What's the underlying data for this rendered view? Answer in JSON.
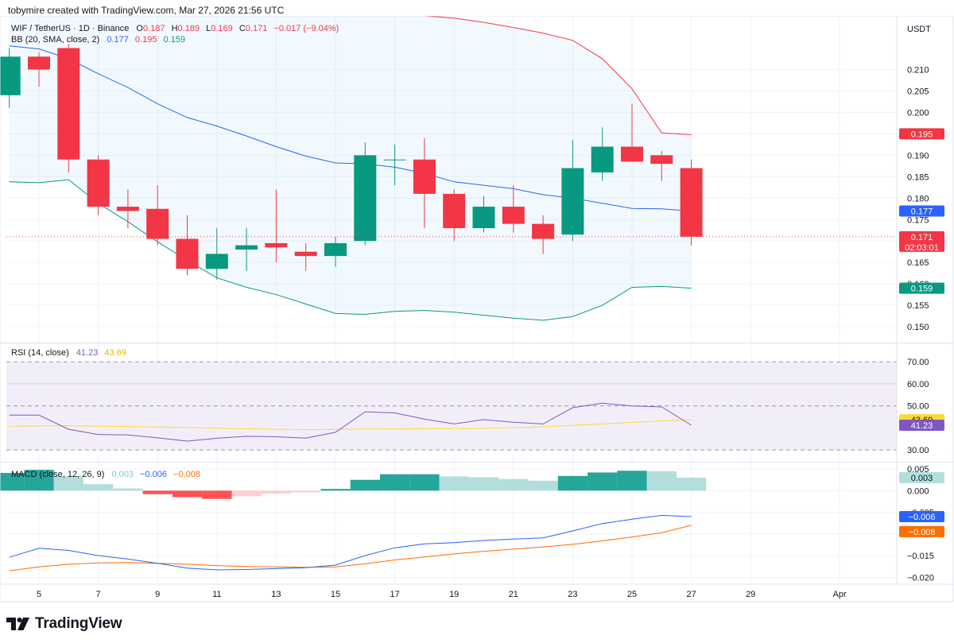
{
  "header": {
    "caption": "tobymire created with TradingView.com, Mar 27, 2026 21:56 UTC"
  },
  "footer": {
    "brand": "TradingView",
    "logo_icon": "tradingview-logo-icon"
  },
  "colors": {
    "up": "#089981",
    "down": "#f23645",
    "upper": "#f23645",
    "basis": "#2962ff",
    "lower": "#089981",
    "rsi": "#7e57c2",
    "rsi_ma": "#fdd835",
    "macd": "#2962ff",
    "signal": "#ff6d00",
    "hist_up_strong": "#26a69a",
    "hist_up_weak": "#b2dfdb",
    "hist_dn_strong": "#ff5252",
    "hist_dn_weak": "#ffcdd2"
  },
  "chart_data": {
    "type": "candlestick",
    "symbol": "WIF / TetherUS · 1D · Binance",
    "quote": {
      "O": "0.187",
      "H": "0.189",
      "L": "0.169",
      "C": "0.171",
      "change": "−0.017 (−9.04%)"
    },
    "currency": "USDT",
    "xaxis": {
      "ticks": [
        "5",
        "7",
        "9",
        "11",
        "13",
        "15",
        "17",
        "19",
        "21",
        "23",
        "25",
        "27",
        "29",
        "Apr"
      ],
      "domain_days": [
        4,
        27
      ]
    },
    "panes": {
      "price": {
        "ylim": [
          0.1465,
          0.2225
        ],
        "ticks": [
          "0.150",
          "0.155",
          "0.160",
          "0.165",
          "0.170",
          "0.175",
          "0.180",
          "0.185",
          "0.190",
          "0.195",
          "0.200",
          "0.205",
          "0.210"
        ],
        "last_price_marker": {
          "value": "0.171",
          "countdown": "02:03:01"
        },
        "candles": [
          {
            "d": 4,
            "o": 0.204,
            "h": 0.215,
            "l": 0.201,
            "c": 0.213
          },
          {
            "d": 5,
            "o": 0.213,
            "h": 0.214,
            "l": 0.206,
            "c": 0.21
          },
          {
            "d": 6,
            "o": 0.215,
            "h": 0.216,
            "l": 0.186,
            "c": 0.189
          },
          {
            "d": 7,
            "o": 0.189,
            "h": 0.19,
            "l": 0.176,
            "c": 0.178
          },
          {
            "d": 8,
            "o": 0.178,
            "h": 0.182,
            "l": 0.173,
            "c": 0.177
          },
          {
            "d": 9,
            "o": 0.1775,
            "h": 0.183,
            "l": 0.169,
            "c": 0.1705
          },
          {
            "d": 10,
            "o": 0.1705,
            "h": 0.176,
            "l": 0.162,
            "c": 0.1635
          },
          {
            "d": 11,
            "o": 0.1635,
            "h": 0.173,
            "l": 0.161,
            "c": 0.167
          },
          {
            "d": 12,
            "o": 0.168,
            "h": 0.173,
            "l": 0.163,
            "c": 0.169
          },
          {
            "d": 13,
            "o": 0.1695,
            "h": 0.182,
            "l": 0.165,
            "c": 0.1685
          },
          {
            "d": 14,
            "o": 0.1675,
            "h": 0.1695,
            "l": 0.163,
            "c": 0.1665
          },
          {
            "d": 15,
            "o": 0.1665,
            "h": 0.171,
            "l": 0.164,
            "c": 0.1695
          },
          {
            "d": 16,
            "o": 0.17,
            "h": 0.193,
            "l": 0.169,
            "c": 0.19
          },
          {
            "d": 17,
            "o": 0.189,
            "h": 0.1925,
            "l": 0.183,
            "c": 0.189
          },
          {
            "d": 18,
            "o": 0.189,
            "h": 0.194,
            "l": 0.173,
            "c": 0.181
          },
          {
            "d": 19,
            "o": 0.181,
            "h": 0.182,
            "l": 0.17,
            "c": 0.173
          },
          {
            "d": 20,
            "o": 0.173,
            "h": 0.1805,
            "l": 0.172,
            "c": 0.178
          },
          {
            "d": 21,
            "o": 0.178,
            "h": 0.183,
            "l": 0.172,
            "c": 0.174
          },
          {
            "d": 22,
            "o": 0.174,
            "h": 0.176,
            "l": 0.167,
            "c": 0.1705
          },
          {
            "d": 23,
            "o": 0.1715,
            "h": 0.1935,
            "l": 0.17,
            "c": 0.187
          },
          {
            "d": 24,
            "o": 0.186,
            "h": 0.1965,
            "l": 0.184,
            "c": 0.192
          },
          {
            "d": 25,
            "o": 0.192,
            "h": 0.202,
            "l": 0.1885,
            "c": 0.1885
          },
          {
            "d": 26,
            "o": 0.19,
            "h": 0.191,
            "l": 0.184,
            "c": 0.188
          },
          {
            "d": 27,
            "o": 0.187,
            "h": 0.189,
            "l": 0.169,
            "c": 0.171
          }
        ],
        "bollinger": {
          "label": "BB (20, SMA, close, 2)",
          "values": [
            "0.177",
            "0.195",
            "0.159"
          ],
          "upper": [
            [
              4,
              0.225
            ],
            [
              5,
              0.2245
            ],
            [
              6,
              0.224
            ],
            [
              7,
              0.2235
            ],
            [
              8,
              0.223
            ],
            [
              9,
              0.2227
            ],
            [
              10,
              0.2225
            ],
            [
              11,
              0.2225
            ],
            [
              12,
              0.2225
            ],
            [
              13,
              0.2225
            ],
            [
              14,
              0.2225
            ],
            [
              15,
              0.2225
            ],
            [
              16,
              0.2225
            ],
            [
              17,
              0.2225
            ],
            [
              18,
              0.2225
            ],
            [
              19,
              0.222
            ],
            [
              20,
              0.221
            ],
            [
              21,
              0.2198
            ],
            [
              22,
              0.2185
            ],
            [
              23,
              0.2168
            ],
            [
              24,
              0.2125
            ],
            [
              25,
              0.2055
            ],
            [
              26,
              0.1952
            ],
            [
              27,
              0.1948
            ]
          ],
          "basis": [
            [
              4,
              0.2155
            ],
            [
              5,
              0.2148
            ],
            [
              6,
              0.2125
            ],
            [
              7,
              0.209
            ],
            [
              8,
              0.2058
            ],
            [
              9,
              0.202
            ],
            [
              10,
              0.1988
            ],
            [
              11,
              0.1968
            ],
            [
              12,
              0.1945
            ],
            [
              13,
              0.192
            ],
            [
              14,
              0.1898
            ],
            [
              15,
              0.1882
            ],
            [
              16,
              0.188
            ],
            [
              17,
              0.1872
            ],
            [
              18,
              0.1858
            ],
            [
              19,
              0.1838
            ],
            [
              20,
              0.183
            ],
            [
              21,
              0.1822
            ],
            [
              22,
              0.1808
            ],
            [
              23,
              0.18
            ],
            [
              24,
              0.1788
            ],
            [
              25,
              0.1776
            ],
            [
              26,
              0.1775
            ],
            [
              27,
              0.177
            ]
          ],
          "lower": [
            [
              4,
              0.1838
            ],
            [
              5,
              0.1836
            ],
            [
              6,
              0.1843
            ],
            [
              7,
              0.1788
            ],
            [
              8,
              0.1745
            ],
            [
              9,
              0.1698
            ],
            [
              10,
              0.1655
            ],
            [
              11,
              0.1614
            ],
            [
              12,
              0.1592
            ],
            [
              13,
              0.1575
            ],
            [
              14,
              0.1553
            ],
            [
              15,
              0.1531
            ],
            [
              16,
              0.1529
            ],
            [
              17,
              0.1536
            ],
            [
              18,
              0.1538
            ],
            [
              19,
              0.1534
            ],
            [
              20,
              0.1527
            ],
            [
              21,
              0.152
            ],
            [
              22,
              0.1515
            ],
            [
              23,
              0.1524
            ],
            [
              24,
              0.155
            ],
            [
              25,
              0.1592
            ],
            [
              26,
              0.1594
            ],
            [
              27,
              0.159
            ]
          ]
        }
      },
      "rsi": {
        "label": "RSI (14, close)",
        "values": [
          "41.23",
          "43.69"
        ],
        "ylim": [
          25,
          78
        ],
        "levels": [
          "70.00",
          "50.00",
          "30.00"
        ],
        "midline": "60.00",
        "ticks": [
          "70.00",
          "60.00",
          "50.00",
          "30.00"
        ],
        "rsi": [
          [
            4,
            45.8
          ],
          [
            5,
            45.8
          ],
          [
            6,
            39.4
          ],
          [
            7,
            37.0
          ],
          [
            8,
            36.8
          ],
          [
            9,
            35.5
          ],
          [
            10,
            34.0
          ],
          [
            11,
            35.3
          ],
          [
            12,
            36.2
          ],
          [
            13,
            36.0
          ],
          [
            14,
            35.4
          ],
          [
            15,
            38.0
          ],
          [
            16,
            47.3
          ],
          [
            17,
            46.8
          ],
          [
            18,
            44.0
          ],
          [
            19,
            41.8
          ],
          [
            20,
            43.8
          ],
          [
            21,
            42.6
          ],
          [
            22,
            41.8
          ],
          [
            23,
            49.2
          ],
          [
            24,
            51.2
          ],
          [
            25,
            50.0
          ],
          [
            26,
            49.5
          ],
          [
            27,
            41.23
          ]
        ],
        "ma": [
          [
            4,
            40.8
          ],
          [
            6,
            41.0
          ],
          [
            8,
            40.6
          ],
          [
            10,
            40.2
          ],
          [
            12,
            39.6
          ],
          [
            14,
            39.2
          ],
          [
            16,
            39.5
          ],
          [
            18,
            39.6
          ],
          [
            20,
            39.8
          ],
          [
            22,
            40.5
          ],
          [
            24,
            41.8
          ],
          [
            26,
            43.2
          ],
          [
            27,
            43.69
          ]
        ]
      },
      "macd": {
        "label": "MACD (close, 12, 26, 9)",
        "values": [
          "0.003",
          "−0.006",
          "−0.008"
        ],
        "ylim": [
          -0.0216,
          0.0063
        ],
        "ticks": [
          "0.005",
          "0.000",
          "−0.005",
          "−0.010",
          "−0.015",
          "−0.020"
        ],
        "histogram": [
          [
            4,
            0.0041
          ],
          [
            5,
            0.0048
          ],
          [
            6,
            0.0034
          ],
          [
            7,
            0.0015
          ],
          [
            8,
            0.0005
          ],
          [
            9,
            -0.0008
          ],
          [
            10,
            -0.0015
          ],
          [
            11,
            -0.0019
          ],
          [
            12,
            -0.0013
          ],
          [
            13,
            -0.0007
          ],
          [
            14,
            -0.0004
          ],
          [
            15,
            0.0004
          ],
          [
            16,
            0.0025
          ],
          [
            17,
            0.0038
          ],
          [
            18,
            0.0038
          ],
          [
            19,
            0.0033
          ],
          [
            20,
            0.0031
          ],
          [
            21,
            0.0027
          ],
          [
            22,
            0.0023
          ],
          [
            23,
            0.0034
          ],
          [
            24,
            0.0042
          ],
          [
            25,
            0.0046
          ],
          [
            26,
            0.0045
          ],
          [
            27,
            0.003
          ]
        ],
        "macd": [
          [
            4,
            -0.0154
          ],
          [
            5,
            -0.0133
          ],
          [
            6,
            -0.0138
          ],
          [
            7,
            -0.015
          ],
          [
            8,
            -0.0158
          ],
          [
            9,
            -0.0168
          ],
          [
            10,
            -0.0179
          ],
          [
            11,
            -0.0183
          ],
          [
            12,
            -0.0182
          ],
          [
            13,
            -0.018
          ],
          [
            14,
            -0.0178
          ],
          [
            15,
            -0.0172
          ],
          [
            16,
            -0.015
          ],
          [
            17,
            -0.0132
          ],
          [
            18,
            -0.0123
          ],
          [
            19,
            -0.012
          ],
          [
            20,
            -0.0115
          ],
          [
            21,
            -0.0112
          ],
          [
            22,
            -0.0109
          ],
          [
            23,
            -0.0093
          ],
          [
            24,
            -0.0076
          ],
          [
            25,
            -0.0066
          ],
          [
            26,
            -0.0057
          ],
          [
            27,
            -0.006
          ]
        ],
        "signal": [
          [
            4,
            -0.0185
          ],
          [
            5,
            -0.0176
          ],
          [
            6,
            -0.017
          ],
          [
            7,
            -0.0167
          ],
          [
            8,
            -0.0166
          ],
          [
            9,
            -0.0168
          ],
          [
            10,
            -0.017
          ],
          [
            11,
            -0.0173
          ],
          [
            12,
            -0.0175
          ],
          [
            13,
            -0.0176
          ],
          [
            14,
            -0.0177
          ],
          [
            15,
            -0.0176
          ],
          [
            16,
            -0.0169
          ],
          [
            17,
            -0.016
          ],
          [
            18,
            -0.0153
          ],
          [
            19,
            -0.0146
          ],
          [
            20,
            -0.014
          ],
          [
            21,
            -0.0135
          ],
          [
            22,
            -0.013
          ],
          [
            23,
            -0.0124
          ],
          [
            24,
            -0.0116
          ],
          [
            25,
            -0.0107
          ],
          [
            26,
            -0.0097
          ],
          [
            27,
            -0.008
          ]
        ]
      }
    }
  }
}
